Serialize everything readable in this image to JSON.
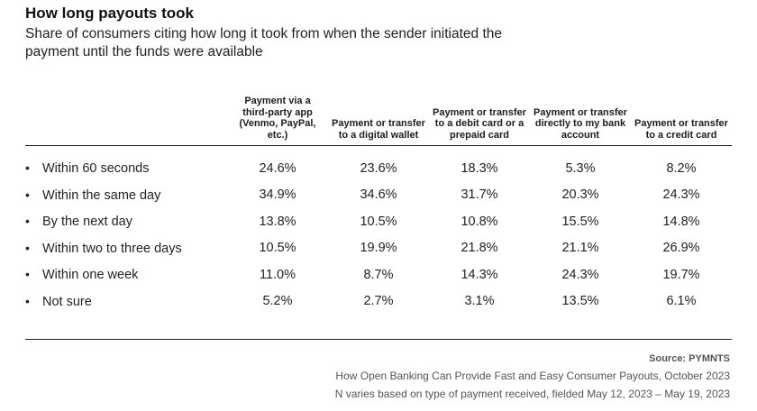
{
  "chart_data": {
    "type": "table",
    "title": "How long payouts took",
    "subtitle": "Share of consumers citing how long it took from when the sender initiated the payment until the funds were available",
    "columns": [
      "Payment via a third-party app (Venmo, PayPal, etc.)",
      "Payment or transfer to a digital wallet",
      "Payment or transfer to a debit card or a prepaid card",
      "Payment or transfer directly to my bank account",
      "Payment or transfer to a credit card"
    ],
    "rows": [
      {
        "label": "Within 60 seconds",
        "values": [
          "24.6%",
          "23.6%",
          "18.3%",
          "5.3%",
          "8.2%"
        ]
      },
      {
        "label": "Within the same day",
        "values": [
          "34.9%",
          "34.6%",
          "31.7%",
          "20.3%",
          "24.3%"
        ]
      },
      {
        "label": "By the next day",
        "values": [
          "13.8%",
          "10.5%",
          "10.8%",
          "15.5%",
          "14.8%"
        ]
      },
      {
        "label": "Within two to three days",
        "values": [
          "10.5%",
          "19.9%",
          "21.8%",
          "21.1%",
          "26.9%"
        ]
      },
      {
        "label": "Within one week",
        "values": [
          "11.0%",
          "8.7%",
          "14.3%",
          "24.3%",
          "19.7%"
        ]
      },
      {
        "label": "Not sure",
        "values": [
          "5.2%",
          "2.7%",
          "3.1%",
          "13.5%",
          "6.1%"
        ]
      }
    ]
  },
  "bullet": "•",
  "source": "Source: PYMNTS",
  "footnotes": [
    "How Open Banking Can Provide Fast and Easy Consumer Payouts, October 2023",
    "N varies based on type of payment received, fielded May 12, 2023 – May 19, 2023"
  ]
}
